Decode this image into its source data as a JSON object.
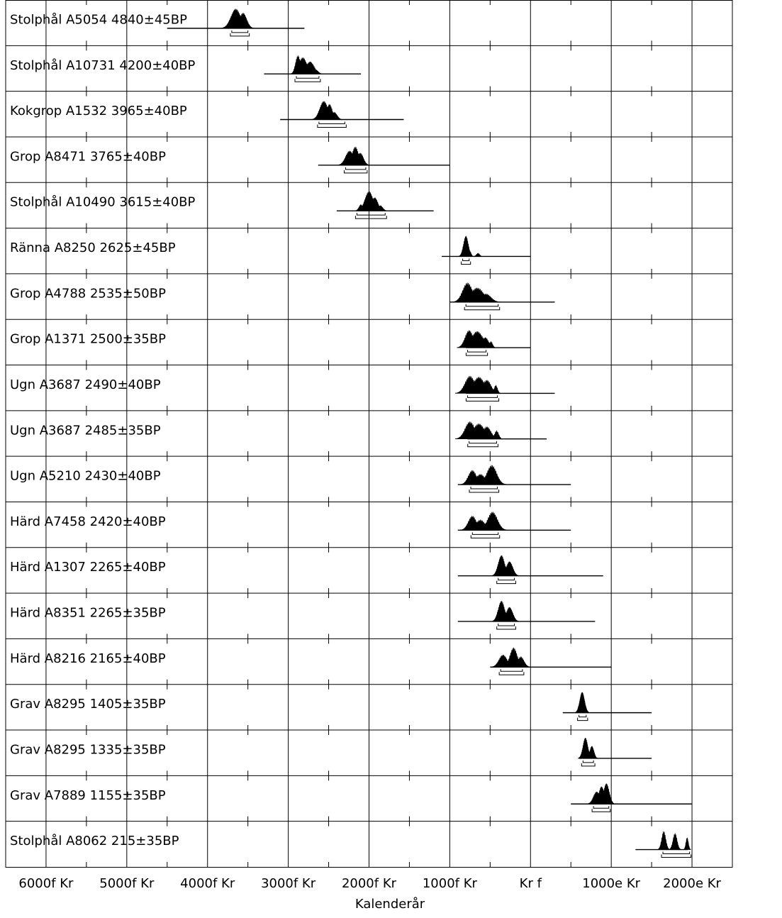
{
  "chart_data": {
    "type": "radiocarbon-calibration-plot",
    "xlabel": "Kalenderår",
    "xlim": [
      -6500,
      2500
    ],
    "x_ticks": [
      {
        "value": -6000,
        "label": "6000f Kr"
      },
      {
        "value": -5000,
        "label": "5000f Kr"
      },
      {
        "value": -4000,
        "label": "4000f Kr"
      },
      {
        "value": -3000,
        "label": "3000f Kr"
      },
      {
        "value": -2000,
        "label": "2000f Kr"
      },
      {
        "value": -1000,
        "label": "1000f Kr"
      },
      {
        "value": 0,
        "label": "Kr f"
      },
      {
        "value": 1000,
        "label": "1000e Kr"
      },
      {
        "value": 2000,
        "label": "2000e Kr"
      }
    ],
    "grid": true,
    "samples": [
      {
        "label": "Stolphål A5054   4840±45BP",
        "peaks": [
          [
            -3650,
            60,
            0.95
          ],
          [
            -3560,
            45,
            0.75
          ]
        ],
        "range": [
          -3700,
          -3500
        ],
        "line": [
          -4500,
          -2800
        ]
      },
      {
        "label": "Stolphål A10731   4200±40BP",
        "peaks": [
          [
            -2880,
            30,
            0.9
          ],
          [
            -2820,
            50,
            0.8
          ],
          [
            -2730,
            50,
            0.6
          ],
          [
            -2660,
            30,
            0.2
          ]
        ],
        "range": [
          -2900,
          -2620
        ],
        "line": [
          -3300,
          -2100
        ]
      },
      {
        "label": "Kokgrop A1532   3965±40BP",
        "peaks": [
          [
            -2560,
            50,
            0.9
          ],
          [
            -2490,
            35,
            0.75
          ],
          [
            -2430,
            35,
            0.35
          ]
        ],
        "range": [
          -2620,
          -2300
        ],
        "line": [
          -3100,
          -1570
        ]
      },
      {
        "label": "Grop A8471   3765±40BP",
        "peaks": [
          [
            -2240,
            50,
            0.7
          ],
          [
            -2170,
            40,
            0.9
          ],
          [
            -2110,
            40,
            0.6
          ]
        ],
        "range": [
          -2290,
          -2040
        ],
        "line": [
          -2630,
          -1000
        ]
      },
      {
        "label": "Stolphål A10490   3615±40BP",
        "peaks": [
          [
            -2000,
            50,
            0.95
          ],
          [
            -1930,
            40,
            0.65
          ],
          [
            -2100,
            25,
            0.3
          ],
          [
            -1860,
            30,
            0.25
          ]
        ],
        "range": [
          -2150,
          -1800
        ],
        "line": [
          -2400,
          -1200
        ]
      },
      {
        "label": "Ränna A8250   2625±45BP",
        "peaks": [
          [
            -800,
            30,
            1.0
          ],
          [
            -750,
            15,
            0.25
          ],
          [
            -650,
            20,
            0.15
          ]
        ],
        "range": [
          -840,
          -760
        ],
        "line": [
          -1100,
          0
        ]
      },
      {
        "label": "Grop A4788   2535±50BP",
        "peaks": [
          [
            -780,
            60,
            0.95
          ],
          [
            -660,
            80,
            0.7
          ],
          [
            -550,
            60,
            0.4
          ]
        ],
        "range": [
          -800,
          -400
        ],
        "line": [
          -1000,
          300
        ]
      },
      {
        "label": "Grop A1371   2500±35BP",
        "peaks": [
          [
            -760,
            50,
            0.85
          ],
          [
            -660,
            70,
            0.8
          ],
          [
            -560,
            40,
            0.5
          ],
          [
            -490,
            20,
            0.3
          ]
        ],
        "range": [
          -780,
          -550
        ],
        "line": [
          -800,
          0
        ]
      },
      {
        "label": "Ugn A3687   2490±40BP",
        "peaks": [
          [
            -750,
            60,
            0.85
          ],
          [
            -640,
            70,
            0.8
          ],
          [
            -540,
            50,
            0.65
          ],
          [
            -430,
            20,
            0.4
          ]
        ],
        "range": [
          -780,
          -410
        ],
        "line": [
          -800,
          300
        ]
      },
      {
        "label": "Ugn A3687   2485±35BP",
        "peaks": [
          [
            -750,
            60,
            0.85
          ],
          [
            -640,
            70,
            0.75
          ],
          [
            -540,
            50,
            0.6
          ],
          [
            -420,
            25,
            0.4
          ]
        ],
        "range": [
          -760,
          -420
        ],
        "line": [
          -780,
          200
        ]
      },
      {
        "label": "Ugn A5210   2430±40BP",
        "peaks": [
          [
            -720,
            50,
            0.7
          ],
          [
            -620,
            60,
            0.5
          ],
          [
            -480,
            60,
            0.95
          ]
        ],
        "range": [
          -740,
          -410
        ],
        "line": [
          -900,
          500
        ]
      },
      {
        "label": "Härd A7458   2420±40BP",
        "peaks": [
          [
            -720,
            50,
            0.7
          ],
          [
            -620,
            60,
            0.5
          ],
          [
            -470,
            60,
            0.9
          ]
        ],
        "range": [
          -720,
          -400
        ],
        "line": [
          -900,
          500
        ]
      },
      {
        "label": "Härd A1307   2265±40BP",
        "peaks": [
          [
            -360,
            40,
            1.0
          ],
          [
            -260,
            40,
            0.7
          ]
        ],
        "range": [
          -400,
          -200
        ],
        "line": [
          -900,
          900
        ]
      },
      {
        "label": "Härd A8351   2265±35BP",
        "peaks": [
          [
            -360,
            40,
            1.0
          ],
          [
            -260,
            40,
            0.7
          ]
        ],
        "range": [
          -400,
          -200
        ],
        "line": [
          -900,
          800
        ]
      },
      {
        "label": "Härd A8216   2165±40BP",
        "peaks": [
          [
            -340,
            50,
            0.6
          ],
          [
            -210,
            45,
            0.95
          ],
          [
            -120,
            40,
            0.5
          ]
        ],
        "range": [
          -370,
          -100
        ],
        "line": [
          -500,
          1000
        ]
      },
      {
        "label": "Grav A8295   1405±35BP",
        "peaks": [
          [
            640,
            30,
            1.0
          ]
        ],
        "range": [
          600,
          690
        ],
        "line": [
          400,
          1500
        ]
      },
      {
        "label": "Grav A8295   1335±35BP",
        "peaks": [
          [
            680,
            30,
            1.0
          ],
          [
            760,
            25,
            0.6
          ]
        ],
        "range": [
          650,
          780
        ],
        "line": [
          600,
          1500
        ]
      },
      {
        "label": "Grav A7889   1155±35BP",
        "peaks": [
          [
            820,
            40,
            0.6
          ],
          [
            880,
            35,
            0.85
          ],
          [
            940,
            35,
            1.0
          ]
        ],
        "range": [
          780,
          970
        ],
        "line": [
          500,
          2000
        ]
      },
      {
        "label": "Stolphål A8062   215±35BP",
        "peaks": [
          [
            1650,
            25,
            0.9
          ],
          [
            1790,
            25,
            0.8
          ],
          [
            1940,
            15,
            0.6
          ]
        ],
        "range": [
          1640,
          1970
        ],
        "line": [
          1300,
          1950
        ]
      }
    ]
  }
}
